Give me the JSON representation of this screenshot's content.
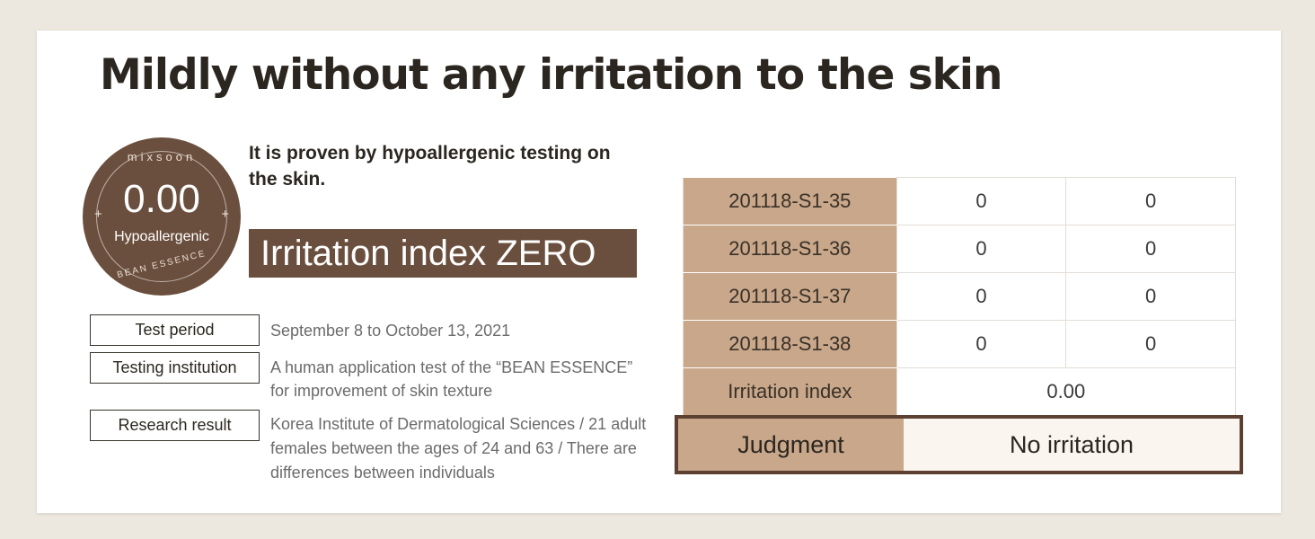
{
  "title": "Mildly without any irritation to the skin",
  "badge": {
    "brand": "mixsoon",
    "value": "0.00",
    "label": "Hypoallergenic",
    "sub": "BEAN ESSENCE"
  },
  "proven_text": "It is proven by hypoallergenic testing on the skin.",
  "highlight": "Irritation index ZERO",
  "info": [
    {
      "label": "Test period",
      "text": "September 8 to October 13, 2021"
    },
    {
      "label": "Testing institution",
      "text": "A human application test of the “BEAN ESSENCE” for improvement of skin texture"
    },
    {
      "label": "Research result",
      "text": "Korea Institute of Dermatological Sciences / 21 adult females between the ages of 24 and 63 / There are differences between individuals"
    }
  ],
  "table": {
    "rows": [
      {
        "id": "201118-S1-35",
        "a": "0",
        "b": "0"
      },
      {
        "id": "201118-S1-36",
        "a": "0",
        "b": "0"
      },
      {
        "id": "201118-S1-37",
        "a": "0",
        "b": "0"
      },
      {
        "id": "201118-S1-38",
        "a": "0",
        "b": "0"
      }
    ],
    "index_label": "Irritation index",
    "index_value": "0.00",
    "judgment_label": "Judgment",
    "judgment_value": "No irritation"
  },
  "colors": {
    "brown": "#6b4f3e",
    "tan": "#c8a78a",
    "background": "#ece8df"
  }
}
